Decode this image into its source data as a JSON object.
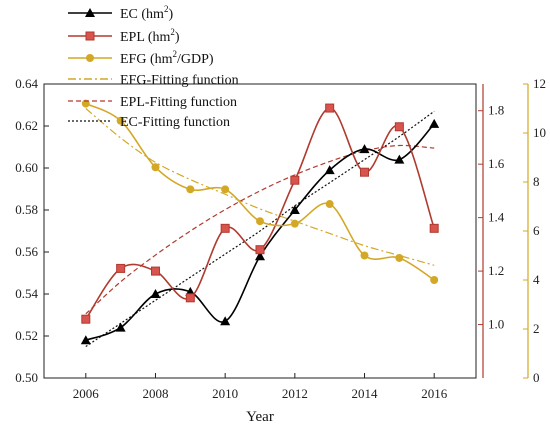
{
  "chart_data": {
    "type": "line",
    "xlabel": "Year",
    "x": [
      2006,
      2007,
      2008,
      2009,
      2010,
      2011,
      2012,
      2013,
      2014,
      2015,
      2016
    ],
    "x_ticks": [
      "2006",
      "2008",
      "2010",
      "2012",
      "2014",
      "2016"
    ],
    "xlim": [
      2004.8,
      2017.2
    ],
    "axes": {
      "left": {
        "ylim": [
          0.5,
          0.64
        ],
        "ticks": [
          "0.50",
          "0.52",
          "0.54",
          "0.56",
          "0.58",
          "0.60",
          "0.62",
          "0.64"
        ],
        "color": "#111111"
      },
      "red": {
        "ylim": [
          0.8,
          1.9
        ],
        "ticks": [
          "1.0",
          "1.2",
          "1.4",
          "1.6",
          "1.8"
        ],
        "color": "#b03a2e"
      },
      "gold": {
        "ylim": [
          0,
          12
        ],
        "ticks": [
          "0",
          "2",
          "4",
          "6",
          "8",
          "10",
          "12"
        ],
        "color": "#d4a827"
      }
    },
    "series": [
      {
        "name": "EC (hm2)",
        "axis": "left",
        "color": "#000000",
        "marker": "triangle",
        "values": [
          0.518,
          0.524,
          0.54,
          0.541,
          0.527,
          0.558,
          0.58,
          0.599,
          0.609,
          0.604,
          0.621
        ]
      },
      {
        "name": "EPL (hm2)",
        "axis": "red",
        "color": "#b03a2e",
        "marker": "square",
        "values": [
          1.02,
          1.21,
          1.2,
          1.1,
          1.36,
          1.28,
          1.54,
          1.81,
          1.57,
          1.74,
          1.36
        ]
      },
      {
        "name": "EFG (hm2/GDP)",
        "axis": "gold",
        "color": "#d4a827",
        "marker": "circle",
        "values": [
          11.2,
          10.5,
          8.6,
          7.7,
          7.7,
          6.4,
          6.3,
          7.1,
          5.0,
          4.9,
          4.0
        ]
      }
    ],
    "fits": [
      {
        "name": "EFG-Fitting function",
        "axis": "gold",
        "color": "#d4a827",
        "dash": "dashdot",
        "values": [
          11.0,
          9.8,
          8.8,
          8.1,
          7.5,
          6.9,
          6.4,
          5.9,
          5.4,
          5.0,
          4.6
        ]
      },
      {
        "name": "EPL-Fitting function",
        "axis": "red",
        "color": "#b03a2e",
        "dash": "dash",
        "values": [
          1.04,
          1.16,
          1.26,
          1.35,
          1.43,
          1.5,
          1.56,
          1.61,
          1.65,
          1.67,
          1.66
        ]
      },
      {
        "name": "EC-Fitting function",
        "axis": "left",
        "color": "#111111",
        "dash": "dot",
        "values": [
          0.515,
          0.526,
          0.537,
          0.548,
          0.559,
          0.57,
          0.582,
          0.593,
          0.604,
          0.615,
          0.627
        ]
      }
    ],
    "legend_position": "top-left",
    "grid": false
  },
  "legend": [
    {
      "main": "EC (hm",
      "sup": "2",
      "tail": ")"
    },
    {
      "main": "EPL (hm",
      "sup": "2",
      "tail": ")"
    },
    {
      "main": "EFG (hm",
      "sup": "2",
      "tail": "/GDP)"
    },
    {
      "main": "EFG-Fitting function",
      "sup": "",
      "tail": ""
    },
    {
      "main": "EPL-Fitting function",
      "sup": "",
      "tail": ""
    },
    {
      "main": "EC-Fitting function",
      "sup": "",
      "tail": ""
    }
  ]
}
